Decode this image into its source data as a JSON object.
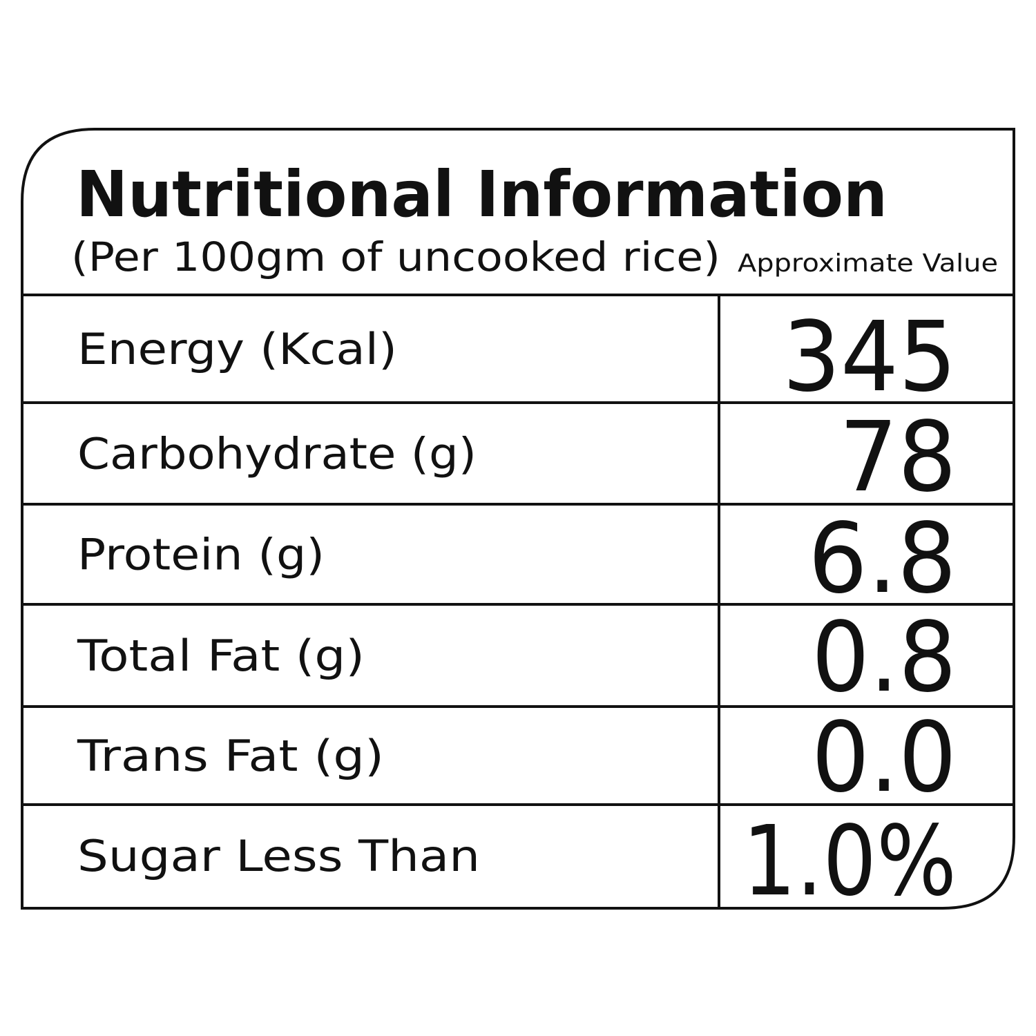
{
  "header": {
    "title": "Nutritional Information",
    "subtitle": "(Per 100gm of uncooked rice)",
    "column_header": "Approximate Value"
  },
  "table": {
    "rows": [
      [
        "Energy (Kcal)",
        "345"
      ],
      [
        "Carbohydrate (g)",
        "78"
      ],
      [
        "Protein (g)",
        "6.8"
      ],
      [
        "Total Fat (g)",
        "0.8"
      ],
      [
        "Trans Fat (g)",
        "0.0"
      ],
      [
        "Sugar Less Than",
        "1.0%"
      ]
    ]
  }
}
